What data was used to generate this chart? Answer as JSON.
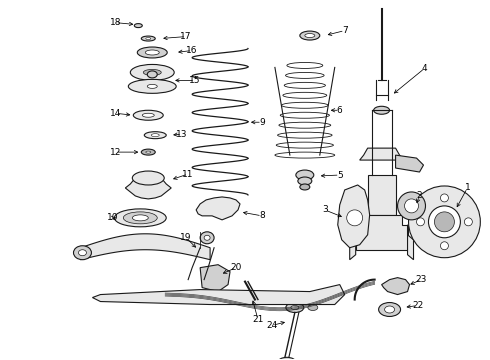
{
  "bg": "#ffffff",
  "lc": "#1a1a1a",
  "fc": "#e8e8e8",
  "fc2": "#d0d0d0",
  "fc3": "#b8b8b8",
  "lw": 0.8,
  "fs": 6.5,
  "fig_w": 4.9,
  "fig_h": 3.6,
  "dpi": 100
}
